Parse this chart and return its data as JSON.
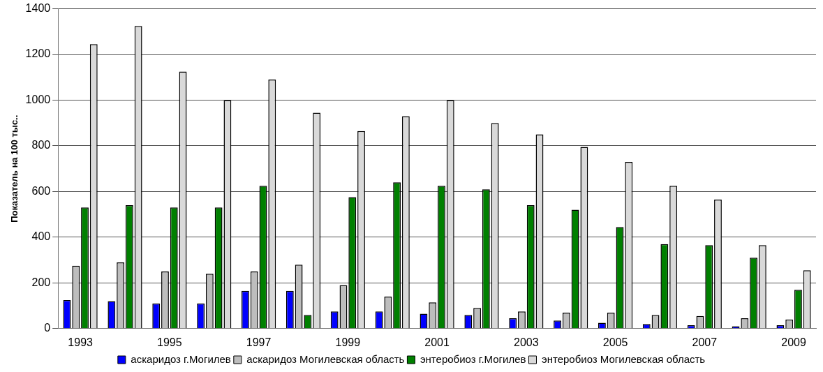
{
  "chart_data": {
    "type": "bar",
    "ylabel": "Показатель на 100 тыс..",
    "categories": [
      "1993",
      null,
      "1995",
      null,
      "1997",
      null,
      "1999",
      null,
      "2001",
      null,
      "2003",
      null,
      "2005",
      null,
      "2007",
      null,
      "2009"
    ],
    "series": [
      {
        "name": "аскаридоз г.Могилев",
        "color": "#0000ff",
        "values": [
          125,
          120,
          110,
          110,
          165,
          165,
          75,
          75,
          65,
          60,
          45,
          35,
          25,
          20,
          15,
          10,
          15
        ]
      },
      {
        "name": "аскаридоз Могилевская область",
        "color": "#bdbdbd",
        "values": [
          275,
          290,
          250,
          240,
          250,
          280,
          190,
          140,
          115,
          90,
          75,
          70,
          70,
          60,
          55,
          45,
          40
        ]
      },
      {
        "name": "энтеробиоз г.Могилев",
        "color": "#008000",
        "values": [
          530,
          540,
          530,
          530,
          625,
          60,
          575,
          640,
          625,
          610,
          540,
          520,
          445,
          370,
          365,
          310,
          170
        ]
      },
      {
        "name": "энтеробиоз Могилевская область",
        "color": "#d9d9d9",
        "values": [
          1245,
          1325,
          1125,
          1000,
          1090,
          945,
          865,
          930,
          1000,
          900,
          850,
          795,
          730,
          625,
          565,
          365,
          255
        ]
      }
    ],
    "ylim": [
      0,
      1400
    ],
    "yticks": [
      0,
      200,
      400,
      600,
      800,
      1000,
      1200,
      1400
    ],
    "grid": "y",
    "legend": "bottom"
  }
}
